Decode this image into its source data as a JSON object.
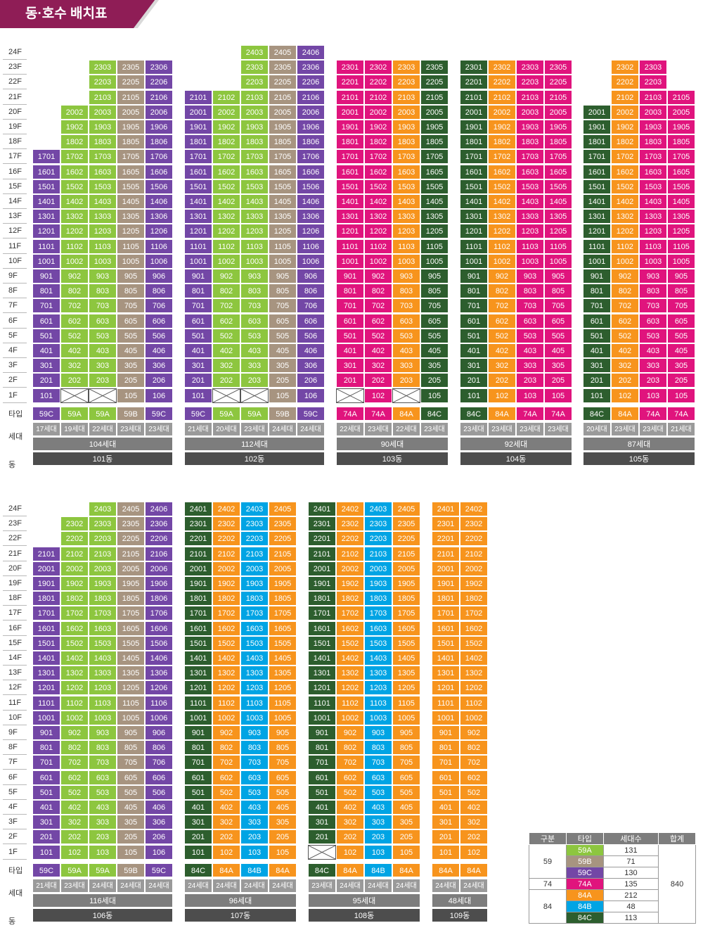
{
  "title": "동·호수 배치표",
  "colors": {
    "59A": "#8dc63f",
    "59B": "#a79480",
    "59C": "#7347a6",
    "74A": "#e0147d",
    "84A": "#f7941d",
    "84B": "#00a4e4",
    "84C": "#2d5e2e"
  },
  "row_labels": {
    "type": "타입",
    "households": "세대",
    "dong": "동"
  },
  "sections": [
    {
      "buildings": [
        {
          "name": "101동",
          "total": "104세대",
          "columns": [
            {
              "line": "01",
              "type": "59C",
              "households": "17세대",
              "top": 17,
              "missing": []
            },
            {
              "line": "02",
              "type": "59A",
              "households": "19세대",
              "top": 20,
              "missing": [
                1
              ]
            },
            {
              "line": "03",
              "type": "59A",
              "households": "22세대",
              "top": 23,
              "missing": [
                1
              ]
            },
            {
              "line": "05",
              "type": "59B",
              "households": "23세대",
              "top": 23,
              "missing": []
            },
            {
              "line": "06",
              "type": "59C",
              "households": "23세대",
              "top": 23,
              "missing": []
            }
          ]
        },
        {
          "name": "102동",
          "total": "112세대",
          "columns": [
            {
              "line": "01",
              "type": "59C",
              "households": "21세대",
              "top": 21,
              "missing": []
            },
            {
              "line": "02",
              "type": "59A",
              "households": "20세대",
              "top": 21,
              "missing": [
                1
              ]
            },
            {
              "line": "03",
              "type": "59A",
              "households": "23세대",
              "top": 24,
              "missing": [
                1
              ]
            },
            {
              "line": "05",
              "type": "59B",
              "households": "24세대",
              "top": 24,
              "missing": []
            },
            {
              "line": "06",
              "type": "59C",
              "households": "24세대",
              "top": 24,
              "missing": []
            }
          ]
        },
        {
          "name": "103동",
          "total": "90세대",
          "columns": [
            {
              "line": "01",
              "type": "74A",
              "households": "22세대",
              "top": 23,
              "missing": [
                1
              ]
            },
            {
              "line": "02",
              "type": "74A",
              "households": "23세대",
              "top": 23,
              "missing": []
            },
            {
              "line": "03",
              "type": "84A",
              "households": "22세대",
              "top": 23,
              "missing": [
                1
              ]
            },
            {
              "line": "05",
              "type": "84C",
              "households": "23세대",
              "top": 23,
              "missing": []
            }
          ]
        },
        {
          "name": "104동",
          "total": "92세대",
          "columns": [
            {
              "line": "01",
              "type": "84C",
              "households": "23세대",
              "top": 23,
              "missing": []
            },
            {
              "line": "02",
              "type": "84A",
              "households": "23세대",
              "top": 23,
              "missing": []
            },
            {
              "line": "03",
              "type": "74A",
              "households": "23세대",
              "top": 23,
              "missing": []
            },
            {
              "line": "05",
              "type": "74A",
              "households": "23세대",
              "top": 23,
              "missing": []
            }
          ]
        },
        {
          "name": "105동",
          "total": "87세대",
          "columns": [
            {
              "line": "01",
              "type": "84C",
              "households": "20세대",
              "top": 20,
              "missing": []
            },
            {
              "line": "02",
              "type": "84A",
              "households": "23세대",
              "top": 23,
              "missing": []
            },
            {
              "line": "03",
              "type": "74A",
              "households": "23세대",
              "top": 23,
              "missing": []
            },
            {
              "line": "05",
              "type": "74A",
              "households": "21세대",
              "top": 21,
              "missing": []
            }
          ]
        }
      ]
    },
    {
      "buildings": [
        {
          "name": "106동",
          "total": "116세대",
          "columns": [
            {
              "line": "01",
              "type": "59C",
              "households": "21세대",
              "top": 21,
              "missing": []
            },
            {
              "line": "02",
              "type": "59A",
              "households": "23세대",
              "top": 23,
              "missing": []
            },
            {
              "line": "03",
              "type": "59A",
              "households": "24세대",
              "top": 24,
              "missing": []
            },
            {
              "line": "05",
              "type": "59B",
              "households": "24세대",
              "top": 24,
              "missing": []
            },
            {
              "line": "06",
              "type": "59C",
              "households": "24세대",
              "top": 24,
              "missing": []
            }
          ]
        },
        {
          "name": "107동",
          "total": "96세대",
          "columns": [
            {
              "line": "01",
              "type": "84C",
              "households": "24세대",
              "top": 24,
              "missing": []
            },
            {
              "line": "02",
              "type": "84A",
              "households": "24세대",
              "top": 24,
              "missing": []
            },
            {
              "line": "03",
              "type": "84B",
              "households": "24세대",
              "top": 24,
              "missing": []
            },
            {
              "line": "05",
              "type": "84A",
              "households": "24세대",
              "top": 24,
              "missing": []
            }
          ]
        },
        {
          "name": "108동",
          "total": "95세대",
          "columns": [
            {
              "line": "01",
              "type": "84C",
              "households": "23세대",
              "top": 24,
              "missing": [
                1
              ]
            },
            {
              "line": "02",
              "type": "84A",
              "households": "24세대",
              "top": 24,
              "missing": []
            },
            {
              "line": "03",
              "type": "84B",
              "households": "24세대",
              "top": 24,
              "missing": []
            },
            {
              "line": "05",
              "type": "84A",
              "households": "24세대",
              "top": 24,
              "missing": []
            }
          ]
        },
        {
          "name": "109동",
          "total": "48세대",
          "columns": [
            {
              "line": "01",
              "type": "84A",
              "households": "24세대",
              "top": 24,
              "missing": []
            },
            {
              "line": "02",
              "type": "84A",
              "households": "24세대",
              "top": 24,
              "missing": []
            }
          ]
        }
      ]
    }
  ],
  "summary": {
    "headers": [
      "구분",
      "타입",
      "세대수",
      "합계"
    ],
    "groups": [
      {
        "label": "59",
        "rows": [
          {
            "type": "59A",
            "count": "131"
          },
          {
            "type": "59B",
            "count": "71"
          },
          {
            "type": "59C",
            "count": "130"
          }
        ]
      },
      {
        "label": "74",
        "rows": [
          {
            "type": "74A",
            "count": "135"
          }
        ]
      },
      {
        "label": "84",
        "rows": [
          {
            "type": "84A",
            "count": "212"
          },
          {
            "type": "84B",
            "count": "48"
          },
          {
            "type": "84C",
            "count": "113"
          }
        ]
      }
    ],
    "total": "840"
  }
}
